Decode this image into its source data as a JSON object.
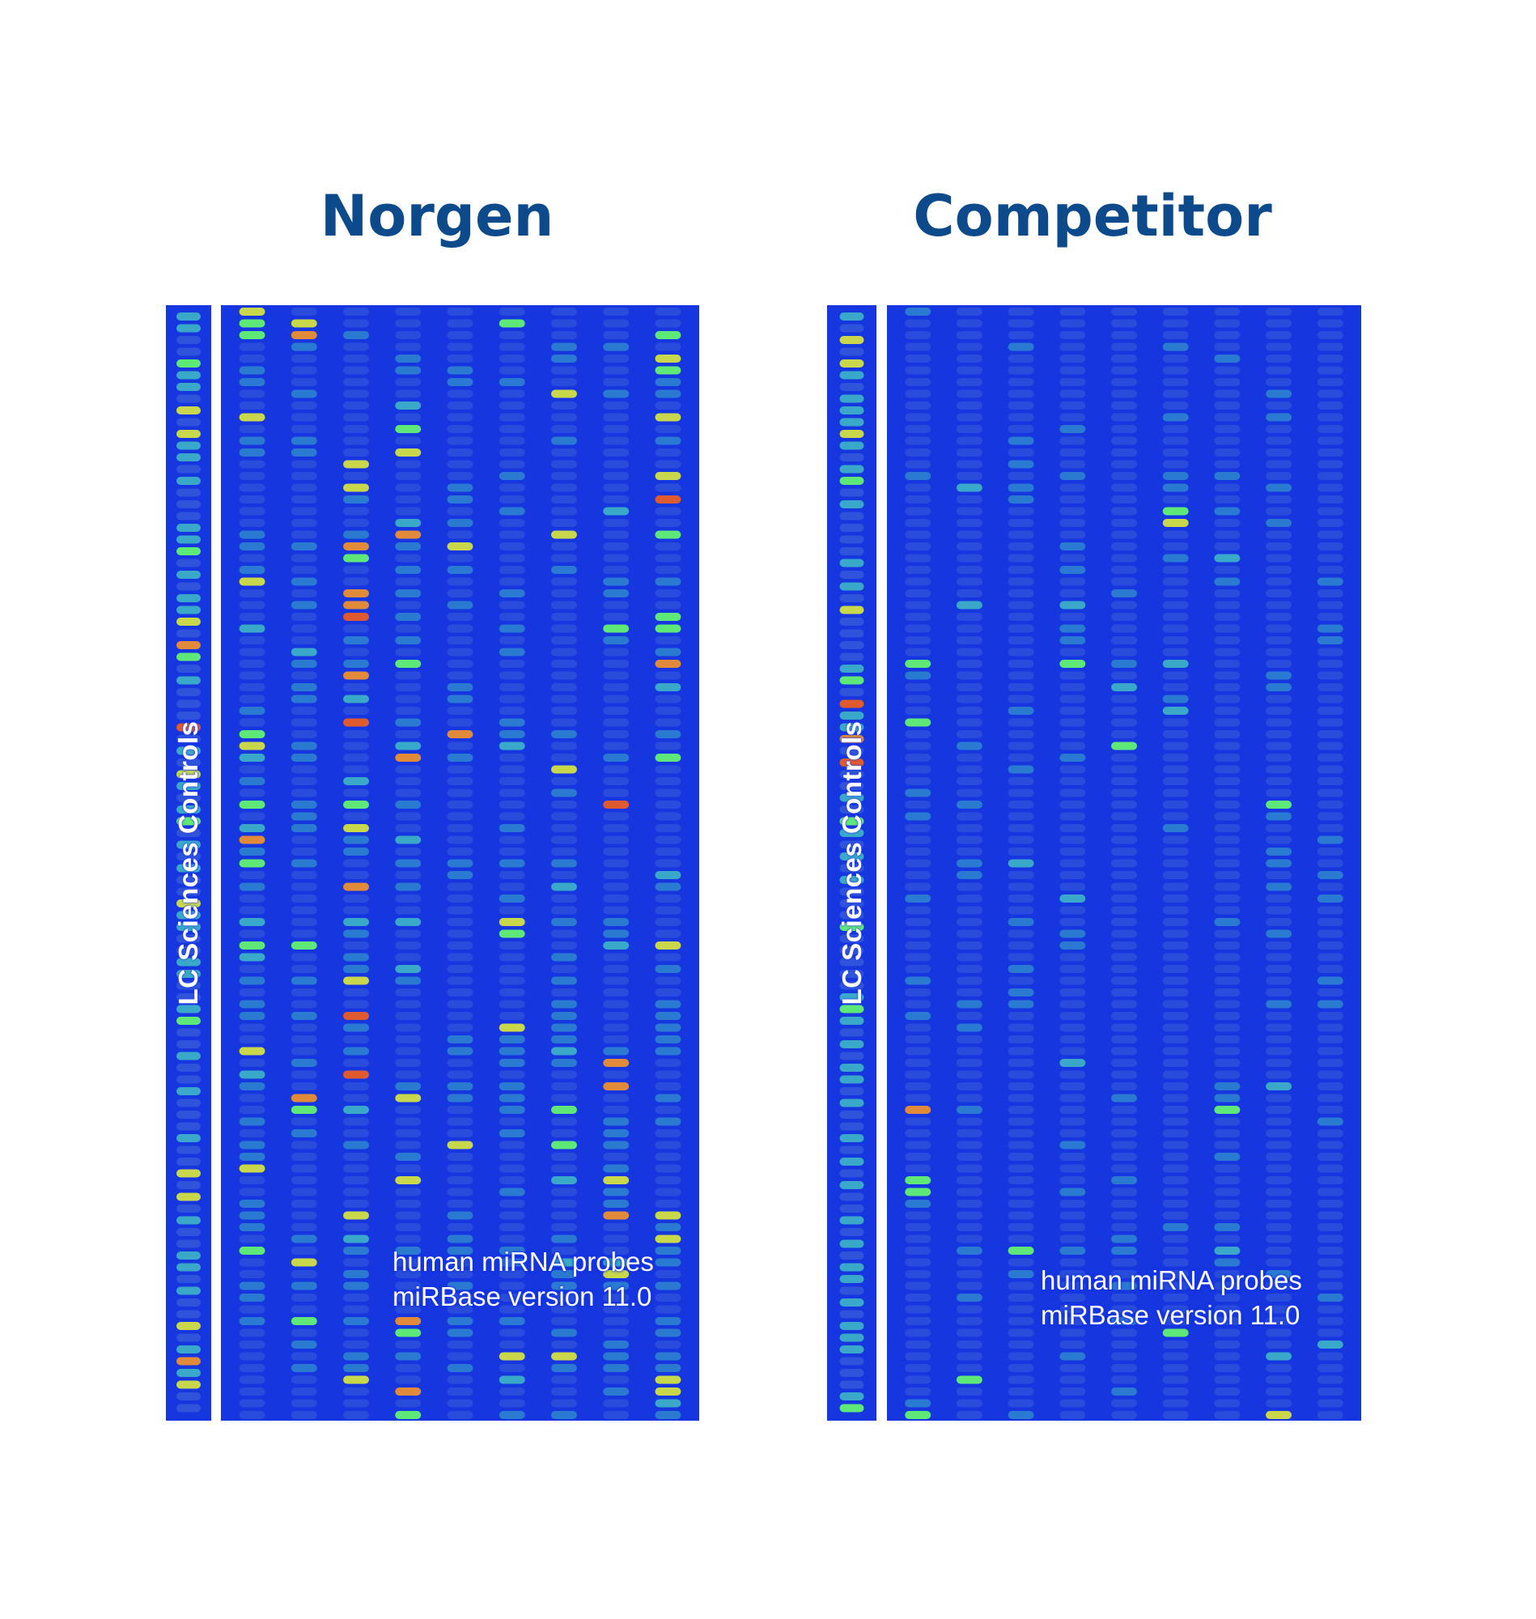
{
  "panels": [
    {
      "id": "norgen",
      "title": "Norgen",
      "controls_label": "LC Sciences Controls",
      "probe_label_line1": "human miRNA probes",
      "probe_label_line2": "miRBase version 11.0",
      "intensity": "high"
    },
    {
      "id": "competitor",
      "title": "Competitor",
      "controls_label": "LC Sciences Controls",
      "probe_label_line1": "human miRNA probes",
      "probe_label_line2": "miRBase version 11.0",
      "intensity": "low"
    }
  ],
  "colors": {
    "title": "#0d4a8c",
    "background": "#1636e0",
    "spot_faint": "#3a5fd8",
    "spot_cyan": "#3aa8c8",
    "spot_green": "#5ee878",
    "spot_yellow": "#c8d84a",
    "spot_orange": "#e08a3a",
    "spot_red": "#e05a30"
  }
}
